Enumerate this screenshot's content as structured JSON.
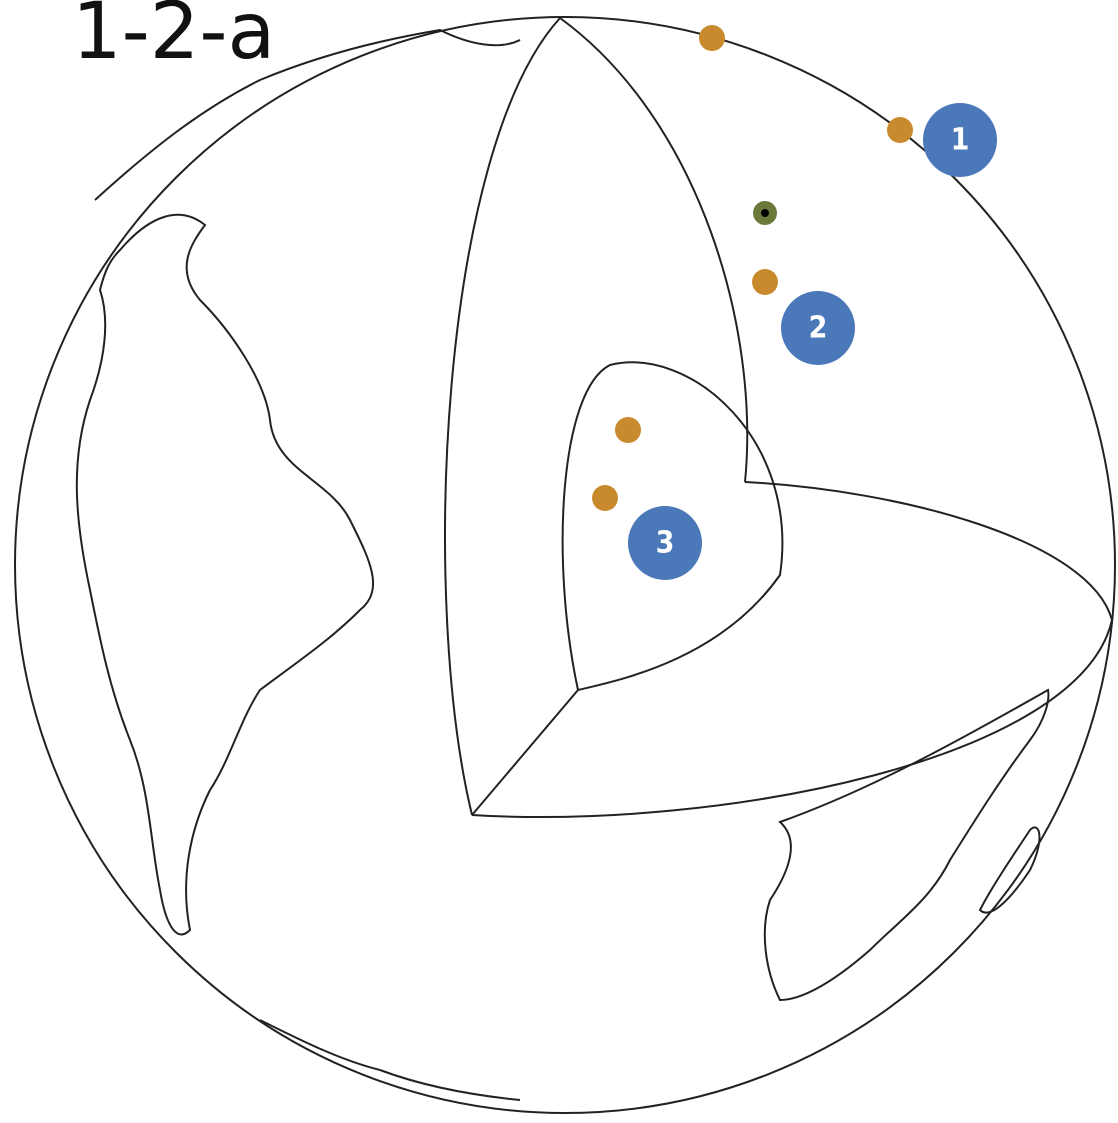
{
  "title": "1-2-a",
  "markers": [
    {
      "label": "1"
    },
    {
      "label": "2"
    },
    {
      "label": "3"
    }
  ]
}
